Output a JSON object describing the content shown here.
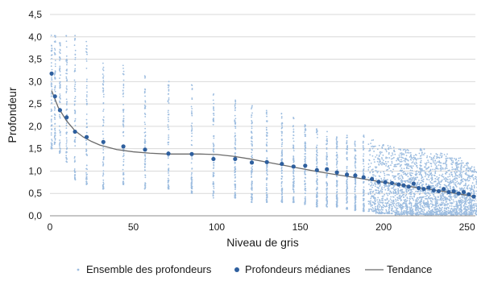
{
  "chart_data": {
    "type": "scatter",
    "xlabel": "Niveau de gris",
    "ylabel": "Profondeur",
    "xlim": [
      0,
      255
    ],
    "ylim": [
      0,
      4.5
    ],
    "x_ticks": [
      "0",
      "50",
      "100",
      "150",
      "200",
      "250"
    ],
    "y_ticks": [
      "0,0",
      "0,5",
      "1,0",
      "1,5",
      "2,0",
      "2,5",
      "3,0",
      "3,5",
      "4,0",
      "4,5"
    ],
    "grid": "horizontal",
    "legend_position": "bottom",
    "series": [
      {
        "name": "Ensemble des profondeurs",
        "kind": "points",
        "color": "#9dbde0",
        "x": [
          1,
          3,
          6,
          10,
          15,
          22,
          32,
          44,
          57,
          71,
          85,
          98,
          111,
          121,
          130,
          139,
          146,
          153,
          160,
          166,
          172,
          178,
          183,
          188,
          193,
          197,
          201,
          205,
          209,
          212,
          215,
          218,
          221,
          224,
          227,
          230,
          233,
          236,
          239,
          242,
          245,
          248,
          251,
          254
        ],
        "y_min": [
          1.5,
          1.6,
          1.4,
          1.2,
          0.8,
          0.7,
          0.6,
          0.7,
          0.6,
          0.6,
          0.5,
          0.4,
          0.4,
          0.3,
          0.3,
          0.3,
          0.3,
          0.25,
          0.2,
          0.2,
          0.2,
          0.15,
          0.1,
          0.1,
          0.1,
          0.05,
          0.05,
          0.05,
          0.02,
          0.02,
          0.02,
          0.02,
          0.02,
          0.02,
          0.02,
          0.02,
          0.02,
          0.02,
          0.02,
          0.02,
          0.02,
          0.02,
          0.02,
          0.02
        ],
        "y_max": [
          4.05,
          4.05,
          4.05,
          4.05,
          4.05,
          4.05,
          3.5,
          3.4,
          3.2,
          3.0,
          3.0,
          2.8,
          2.6,
          2.5,
          2.4,
          2.3,
          2.2,
          2.1,
          2.0,
          1.9,
          1.8,
          1.8,
          1.7,
          1.8,
          1.7,
          1.6,
          1.6,
          1.6,
          1.5,
          1.5,
          1.5,
          1.5,
          1.5,
          1.5,
          1.4,
          1.4,
          1.4,
          1.4,
          1.3,
          1.3,
          1.3,
          1.2,
          1.2,
          1.1
        ]
      },
      {
        "name": "Profondeurs médianes",
        "kind": "markers",
        "color": "#2e5f9e",
        "x": [
          1,
          3,
          6,
          10,
          15,
          22,
          32,
          44,
          57,
          71,
          85,
          98,
          111,
          121,
          130,
          139,
          146,
          153,
          160,
          166,
          172,
          178,
          183,
          188,
          193,
          197,
          201,
          205,
          209,
          212,
          215,
          218,
          221,
          224,
          227,
          230,
          233,
          236,
          239,
          242,
          245,
          248,
          251,
          254
        ],
        "y": [
          3.18,
          2.67,
          2.36,
          2.2,
          1.88,
          1.76,
          1.65,
          1.55,
          1.48,
          1.39,
          1.38,
          1.27,
          1.27,
          1.19,
          1.2,
          1.16,
          1.1,
          1.12,
          1.02,
          1.04,
          0.97,
          0.92,
          0.9,
          0.86,
          0.82,
          0.76,
          0.75,
          0.73,
          0.7,
          0.68,
          0.65,
          0.72,
          0.62,
          0.6,
          0.63,
          0.57,
          0.55,
          0.6,
          0.53,
          0.55,
          0.5,
          0.53,
          0.48,
          0.43
        ]
      },
      {
        "name": "Tendance",
        "kind": "line",
        "color": "#6b6b6b",
        "x": [
          1,
          5,
          10,
          15,
          20,
          25,
          30,
          40,
          50,
          60,
          70,
          80,
          90,
          100,
          110,
          120,
          130,
          140,
          150,
          160,
          170,
          180,
          190,
          200,
          210,
          220,
          230,
          240,
          250,
          255
        ],
        "y": [
          2.8,
          2.42,
          2.12,
          1.9,
          1.76,
          1.66,
          1.58,
          1.48,
          1.43,
          1.4,
          1.38,
          1.38,
          1.38,
          1.37,
          1.33,
          1.27,
          1.2,
          1.13,
          1.06,
          0.99,
          0.93,
          0.87,
          0.81,
          0.75,
          0.69,
          0.63,
          0.58,
          0.52,
          0.46,
          0.42
        ]
      }
    ]
  }
}
